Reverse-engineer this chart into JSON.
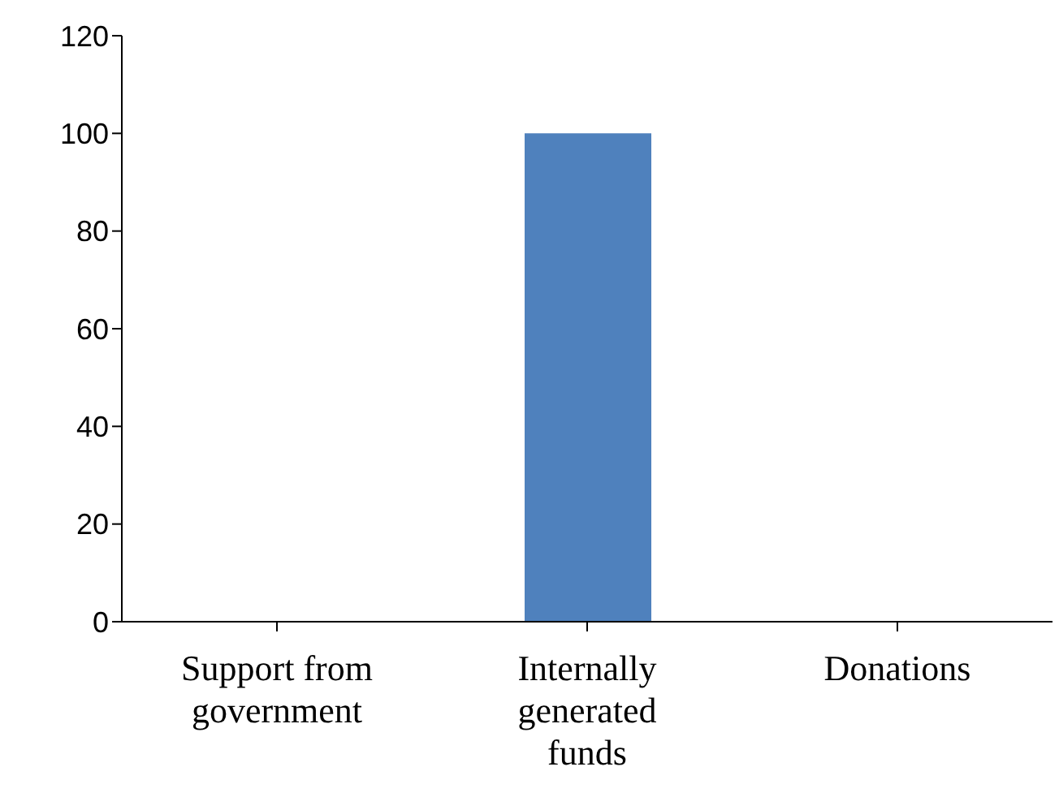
{
  "chart_data": {
    "type": "bar",
    "categories": [
      "Support from government",
      "Internally generated funds",
      "Donations"
    ],
    "values": [
      0,
      100,
      0
    ],
    "color": "#4f81bd",
    "ylim": [
      0,
      120
    ],
    "yticks": [
      0,
      20,
      40,
      60,
      80,
      100,
      120
    ],
    "grid": false,
    "legend": false
  }
}
